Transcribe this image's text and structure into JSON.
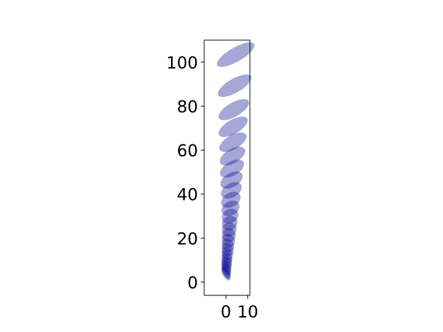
{
  "chart_data": {
    "type": "scatter",
    "marker": "ellipse",
    "color": "#00008b",
    "alpha": 0.35,
    "title": "",
    "xlabel": "",
    "ylabel": "",
    "xlim": [
      -10,
      11
    ],
    "ylim": [
      -6,
      110
    ],
    "xticks": [
      0,
      10
    ],
    "yticks": [
      0,
      20,
      40,
      60,
      80,
      100
    ],
    "xtick_labels": [
      "0",
      "10"
    ],
    "ytick_labels": [
      "0",
      "20",
      "40",
      "60",
      "80",
      "100"
    ],
    "grid": false,
    "legend": "none",
    "points": [
      {
        "x": 0.0,
        "y": 3.6,
        "rx": 1.4,
        "ry": 0.8
      },
      {
        "x": 0.0,
        "y": 4.4,
        "rx": 1.5,
        "ry": 0.8
      },
      {
        "x": 0.1,
        "y": 5.3,
        "rx": 1.6,
        "ry": 0.8
      },
      {
        "x": 0.2,
        "y": 6.3,
        "rx": 1.7,
        "ry": 0.8
      },
      {
        "x": 0.2,
        "y": 7.4,
        "rx": 1.8,
        "ry": 0.8
      },
      {
        "x": 0.3,
        "y": 8.6,
        "rx": 1.9,
        "ry": 0.8
      },
      {
        "x": 0.4,
        "y": 9.9,
        "rx": 2.0,
        "ry": 0.8
      },
      {
        "x": 0.5,
        "y": 11.4,
        "rx": 2.1,
        "ry": 0.8
      },
      {
        "x": 0.6,
        "y": 13.0,
        "rx": 2.3,
        "ry": 0.8
      },
      {
        "x": 0.8,
        "y": 14.8,
        "rx": 2.5,
        "ry": 0.8
      },
      {
        "x": 0.9,
        "y": 16.7,
        "rx": 2.7,
        "ry": 0.8
      },
      {
        "x": 1.1,
        "y": 18.9,
        "rx": 2.9,
        "ry": 0.8
      },
      {
        "x": 1.3,
        "y": 21.3,
        "rx": 3.1,
        "ry": 0.8
      },
      {
        "x": 1.5,
        "y": 23.9,
        "rx": 3.4,
        "ry": 0.8
      },
      {
        "x": 1.7,
        "y": 26.8,
        "rx": 3.7,
        "ry": 0.8
      },
      {
        "x": 1.9,
        "y": 30.0,
        "rx": 4.0,
        "ry": 0.8
      },
      {
        "x": 2.1,
        "y": 33.5,
        "rx": 4.4,
        "ry": 0.8
      },
      {
        "x": 2.3,
        "y": 37.4,
        "rx": 4.8,
        "ry": 0.8
      },
      {
        "x": 2.5,
        "y": 41.7,
        "rx": 5.2,
        "ry": 0.8
      },
      {
        "x": 2.6,
        "y": 46.4,
        "rx": 5.6,
        "ry": 0.8
      },
      {
        "x": 2.8,
        "y": 51.6,
        "rx": 6.1,
        "ry": 0.8
      },
      {
        "x": 3.0,
        "y": 57.3,
        "rx": 6.5,
        "ry": 0.8
      },
      {
        "x": 3.2,
        "y": 63.6,
        "rx": 7.0,
        "ry": 0.8
      },
      {
        "x": 3.3,
        "y": 70.6,
        "rx": 7.5,
        "ry": 0.8
      },
      {
        "x": 3.6,
        "y": 78.4,
        "rx": 7.9,
        "ry": 0.8
      },
      {
        "x": 4.0,
        "y": 89.3,
        "rx": 8.7,
        "ry": 0.8
      },
      {
        "x": 4.5,
        "y": 103.4,
        "rx": 9.8,
        "ry": 0.8
      }
    ]
  }
}
